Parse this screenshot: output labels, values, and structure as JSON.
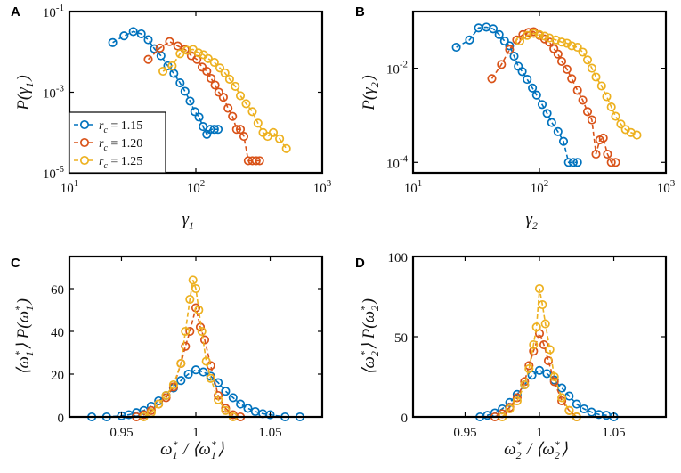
{
  "chart_data": [
    {
      "panel": "A",
      "type": "line",
      "xlabel": "γ1",
      "ylabel": "P(γ1)",
      "xscale": "log",
      "yscale": "log",
      "xlim": [
        10,
        1000
      ],
      "ylim": [
        1e-05,
        0.1
      ],
      "xticks": [
        {
          "v": 10,
          "b": "10",
          "e": "1"
        },
        {
          "v": 100,
          "b": "10",
          "e": "2"
        },
        {
          "v": 1000,
          "b": "10",
          "e": "3"
        }
      ],
      "yticks": [
        {
          "v": 1e-05,
          "b": "10",
          "e": "-5"
        },
        {
          "v": 0.001,
          "b": "10",
          "e": "-3"
        },
        {
          "v": 0.1,
          "b": "10",
          "e": "-1"
        }
      ],
      "legend": {
        "position": "bottom-left",
        "entries": [
          "r_c = 1.15",
          "r_c = 1.20",
          "r_c = 1.25"
        ]
      },
      "series": [
        {
          "name": "r_c = 1.15",
          "color": "#0072BD",
          "x": [
            22,
            27,
            32,
            37,
            42,
            47,
            53,
            60,
            67,
            75,
            82,
            90,
            98,
            106,
            114,
            122,
            130,
            140,
            150
          ],
          "y": [
            0.017,
            0.025,
            0.032,
            0.028,
            0.02,
            0.012,
            0.008,
            0.0045,
            0.0029,
            0.0017,
            0.00105,
            0.0006,
            0.00033,
            0.00024,
            0.00014,
            9e-05,
            0.00012,
            0.00012,
            0.00012
          ]
        },
        {
          "name": "r_c = 1.20",
          "color": "#D95319",
          "x": [
            42,
            52,
            62,
            72,
            82,
            92,
            102,
            112,
            122,
            132,
            142,
            152,
            165,
            180,
            195,
            210,
            225,
            240,
            260,
            280,
            300,
            320
          ],
          "y": [
            0.0065,
            0.0125,
            0.018,
            0.014,
            0.0115,
            0.008,
            0.0065,
            0.0042,
            0.0033,
            0.0022,
            0.0015,
            0.001,
            0.00075,
            0.0004,
            0.00025,
            0.00012,
            0.00012,
            8e-05,
            2e-05,
            2e-05,
            2e-05,
            2e-05
          ]
        },
        {
          "name": "r_c = 1.25",
          "color": "#EDB120",
          "x": [
            55,
            65,
            75,
            85,
            95,
            105,
            115,
            125,
            140,
            155,
            170,
            185,
            205,
            225,
            250,
            280,
            310,
            340,
            370,
            410,
            460,
            520
          ],
          "y": [
            0.0033,
            0.0045,
            0.009,
            0.011,
            0.0115,
            0.0095,
            0.0085,
            0.0068,
            0.0055,
            0.004,
            0.003,
            0.0021,
            0.0014,
            0.00082,
            0.00052,
            0.00033,
            0.00017,
            0.0001,
            8e-05,
            0.0001,
            7e-05,
            4e-05
          ]
        }
      ]
    },
    {
      "panel": "B",
      "type": "line",
      "xlabel": "γ2",
      "ylabel": "P(γ2)",
      "xscale": "log",
      "yscale": "log",
      "xlim": [
        10,
        1000
      ],
      "ylim": [
        6e-05,
        0.16
      ],
      "xticks": [
        {
          "v": 10,
          "b": "10",
          "e": "1"
        },
        {
          "v": 100,
          "b": "10",
          "e": "2"
        },
        {
          "v": 1000,
          "b": "10",
          "e": "3"
        }
      ],
      "yticks": [
        {
          "v": 0.0001,
          "b": "10",
          "e": "-4"
        },
        {
          "v": 0.01,
          "b": "10",
          "e": "-2"
        }
      ],
      "series": [
        {
          "name": "r_c = 1.15",
          "color": "#0072BD",
          "x": [
            22,
            28,
            33,
            38,
            43,
            48,
            53,
            58,
            63,
            68,
            73,
            80,
            88,
            95,
            105,
            115,
            125,
            140,
            155,
            170,
            185,
            200
          ],
          "y": [
            0.028,
            0.04,
            0.072,
            0.075,
            0.069,
            0.052,
            0.038,
            0.03,
            0.018,
            0.011,
            0.0085,
            0.0058,
            0.0038,
            0.0027,
            0.0017,
            0.0011,
            0.0007,
            0.00045,
            0.00028,
            0.0001,
            0.0001,
            0.0001
          ]
        },
        {
          "name": "r_c = 1.20",
          "color": "#D95319",
          "x": [
            42,
            50,
            58,
            66,
            74,
            82,
            90,
            100,
            110,
            120,
            130,
            140,
            150,
            165,
            180,
            200,
            220,
            240,
            260,
            280,
            300,
            320,
            345,
            370,
            400
          ],
          "y": [
            0.006,
            0.012,
            0.025,
            0.04,
            0.052,
            0.058,
            0.06,
            0.05,
            0.042,
            0.036,
            0.026,
            0.02,
            0.014,
            0.0095,
            0.006,
            0.0034,
            0.0021,
            0.0012,
            0.0008,
            0.00015,
            0.0003,
            0.00033,
            0.00015,
            0.0001,
            0.0001
          ]
        },
        {
          "name": "r_c = 1.25",
          "color": "#EDB120",
          "x": [
            70,
            80,
            90,
            100,
            110,
            120,
            135,
            150,
            165,
            180,
            200,
            220,
            240,
            260,
            280,
            310,
            340,
            370,
            400,
            440,
            480,
            530,
            590
          ],
          "y": [
            0.038,
            0.05,
            0.055,
            0.052,
            0.048,
            0.044,
            0.04,
            0.036,
            0.034,
            0.03,
            0.028,
            0.022,
            0.015,
            0.01,
            0.0065,
            0.0042,
            0.0025,
            0.0015,
            0.00095,
            0.00065,
            0.0005,
            0.00043,
            0.00038
          ]
        }
      ]
    },
    {
      "panel": "C",
      "type": "line",
      "xlabel": "ω*1 / ⟨ω*1⟩",
      "ylabel": "⟨ω*1⟩ P(ω*1)",
      "xlim": [
        0.915,
        1.085
      ],
      "ylim": [
        0,
        75
      ],
      "xticks": [
        {
          "v": 0.95,
          "t": "0.95"
        },
        {
          "v": 1,
          "t": "1"
        },
        {
          "v": 1.05,
          "t": "1.05"
        }
      ],
      "yticks": [
        {
          "v": 0,
          "t": "0"
        },
        {
          "v": 20,
          "t": "20"
        },
        {
          "v": 40,
          "t": "40"
        },
        {
          "v": 60,
          "t": "60"
        }
      ],
      "series": [
        {
          "name": "r_c = 1.15",
          "color": "#0072BD",
          "x": [
            0.93,
            0.94,
            0.95,
            0.955,
            0.96,
            0.965,
            0.97,
            0.975,
            0.98,
            0.985,
            0.99,
            0.995,
            1.0,
            1.005,
            1.01,
            1.015,
            1.02,
            1.025,
            1.03,
            1.035,
            1.04,
            1.045,
            1.05,
            1.06,
            1.07
          ],
          "y": [
            0,
            0,
            0.5,
            1,
            2,
            3,
            5,
            7.5,
            10,
            13.5,
            17,
            20,
            22,
            21,
            19,
            16,
            12,
            9,
            6,
            4,
            2.5,
            1.5,
            1,
            0,
            0
          ]
        },
        {
          "name": "r_c = 1.20",
          "color": "#D95319",
          "x": [
            0.96,
            0.965,
            0.97,
            0.975,
            0.98,
            0.985,
            0.99,
            0.993,
            0.996,
            1.0,
            1.003,
            1.006,
            1.01,
            1.015,
            1.02,
            1.025,
            1.03
          ],
          "y": [
            0,
            1,
            3,
            6,
            9,
            14,
            25,
            33,
            40,
            51,
            42,
            36,
            24,
            10,
            4,
            1,
            0
          ]
        },
        {
          "name": "r_c = 1.25",
          "color": "#EDB120",
          "x": [
            0.965,
            0.97,
            0.975,
            0.98,
            0.985,
            0.99,
            0.993,
            0.996,
            0.998,
            1.0,
            1.002,
            1.004,
            1.007,
            1.01,
            1.015,
            1.02,
            1.025
          ],
          "y": [
            0,
            2,
            6,
            10,
            15,
            25,
            40,
            55,
            64,
            60,
            50,
            40,
            26,
            18,
            8,
            3,
            0
          ]
        }
      ]
    },
    {
      "panel": "D",
      "type": "line",
      "xlabel": "ω*2 / ⟨ω*2⟩",
      "ylabel": "⟨ω*2⟩ P(ω*2)",
      "xlim": [
        0.915,
        1.085
      ],
      "ylim": [
        0,
        100
      ],
      "xticks": [
        {
          "v": 0.95,
          "t": "0.95"
        },
        {
          "v": 1,
          "t": "1"
        },
        {
          "v": 1.05,
          "t": "1.05"
        }
      ],
      "yticks": [
        {
          "v": 0,
          "t": "0"
        },
        {
          "v": 50,
          "t": "50"
        },
        {
          "v": 100,
          "t": "100"
        }
      ],
      "series": [
        {
          "name": "r_c = 1.15",
          "color": "#0072BD",
          "x": [
            0.96,
            0.965,
            0.97,
            0.975,
            0.98,
            0.985,
            0.99,
            0.995,
            1.0,
            1.005,
            1.01,
            1.015,
            1.02,
            1.025,
            1.03,
            1.035,
            1.04,
            1.045,
            1.05
          ],
          "y": [
            0,
            1,
            2.5,
            5,
            9,
            14,
            20,
            26,
            29,
            27,
            23,
            18,
            13,
            8,
            5,
            3,
            1.5,
            1,
            0
          ]
        },
        {
          "name": "r_c = 1.20",
          "color": "#D95319",
          "x": [
            0.97,
            0.975,
            0.98,
            0.985,
            0.99,
            0.993,
            0.996,
            1.0,
            1.003,
            1.006,
            1.01,
            1.015,
            1.02,
            1.025
          ],
          "y": [
            0,
            2,
            6,
            12,
            22,
            32,
            41,
            52,
            45,
            35,
            22,
            10,
            4,
            0
          ]
        },
        {
          "name": "r_c = 1.25",
          "color": "#EDB120",
          "x": [
            0.975,
            0.98,
            0.985,
            0.99,
            0.993,
            0.996,
            0.998,
            1.0,
            1.002,
            1.004,
            1.007,
            1.01,
            1.015,
            1.02,
            1.025
          ],
          "y": [
            0,
            5,
            10,
            20,
            30,
            45,
            56,
            80,
            70,
            58,
            42,
            25,
            12,
            4,
            0
          ]
        }
      ]
    }
  ]
}
